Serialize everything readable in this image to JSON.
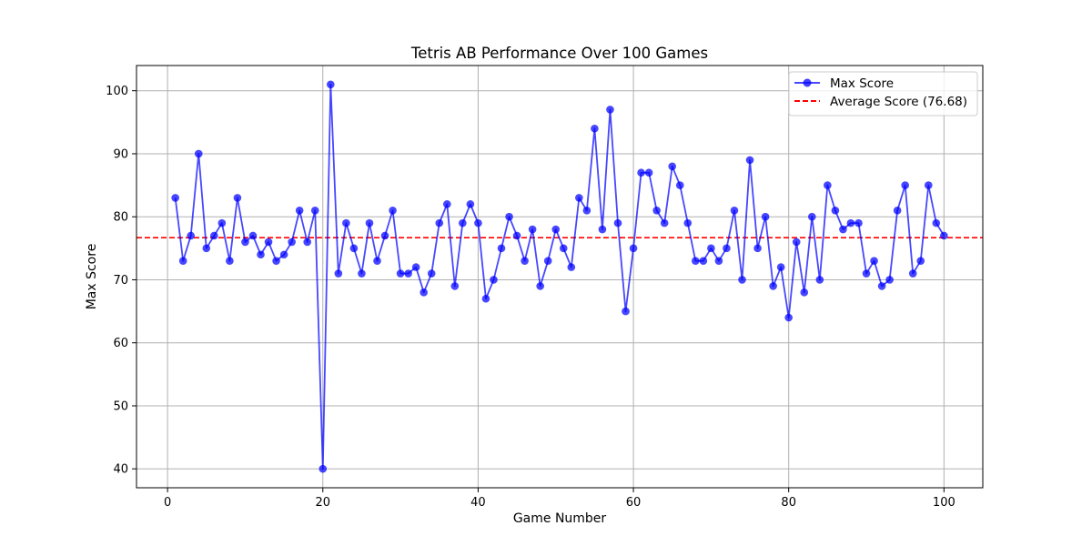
{
  "chart_data": {
    "type": "line",
    "title": "Tetris AB Performance Over 100 Games",
    "xlabel": "Game Number",
    "ylabel": "Max Score",
    "xlim": [
      -4,
      105
    ],
    "ylim": [
      37,
      104
    ],
    "xticks": [
      0,
      20,
      40,
      60,
      80,
      100
    ],
    "yticks": [
      40,
      50,
      60,
      70,
      80,
      90,
      100
    ],
    "grid": true,
    "legend_position": "top-right",
    "series": [
      {
        "name": "Max Score",
        "color": "#0000ff",
        "marker": "circle",
        "x": [
          1,
          2,
          3,
          4,
          5,
          6,
          7,
          8,
          9,
          10,
          11,
          12,
          13,
          14,
          15,
          16,
          17,
          18,
          19,
          20,
          21,
          22,
          23,
          24,
          25,
          26,
          27,
          28,
          29,
          30,
          31,
          32,
          33,
          34,
          35,
          36,
          37,
          38,
          39,
          40,
          41,
          42,
          43,
          44,
          45,
          46,
          47,
          48,
          49,
          50,
          51,
          52,
          53,
          54,
          55,
          56,
          57,
          58,
          59,
          60,
          61,
          62,
          63,
          64,
          65,
          66,
          67,
          68,
          69,
          70,
          71,
          72,
          73,
          74,
          75,
          76,
          77,
          78,
          79,
          80,
          81,
          82,
          83,
          84,
          85,
          86,
          87,
          88,
          89,
          90,
          91,
          92,
          93,
          94,
          95,
          96,
          97,
          98,
          99,
          100
        ],
        "values": [
          83,
          73,
          77,
          90,
          75,
          77,
          79,
          73,
          83,
          76,
          77,
          74,
          76,
          73,
          74,
          76,
          81,
          76,
          81,
          40,
          101,
          71,
          79,
          75,
          71,
          79,
          73,
          77,
          81,
          71,
          71,
          72,
          68,
          71,
          79,
          82,
          69,
          79,
          82,
          79,
          67,
          70,
          75,
          80,
          77,
          73,
          78,
          69,
          73,
          78,
          75,
          72,
          83,
          81,
          94,
          78,
          97,
          79,
          65,
          75,
          87,
          87,
          81,
          79,
          88,
          85,
          79,
          73,
          73,
          75,
          73,
          75,
          81,
          70,
          89,
          75,
          80,
          69,
          72,
          64,
          76,
          68,
          80,
          70,
          85,
          81,
          78,
          79,
          79,
          71,
          73,
          69,
          70,
          81,
          85,
          71,
          73,
          85,
          79,
          77
        ]
      }
    ],
    "reference_lines": [
      {
        "name": "Average Score (76.68)",
        "y": 76.68,
        "color": "#ff0000",
        "style": "dashed"
      }
    ]
  }
}
